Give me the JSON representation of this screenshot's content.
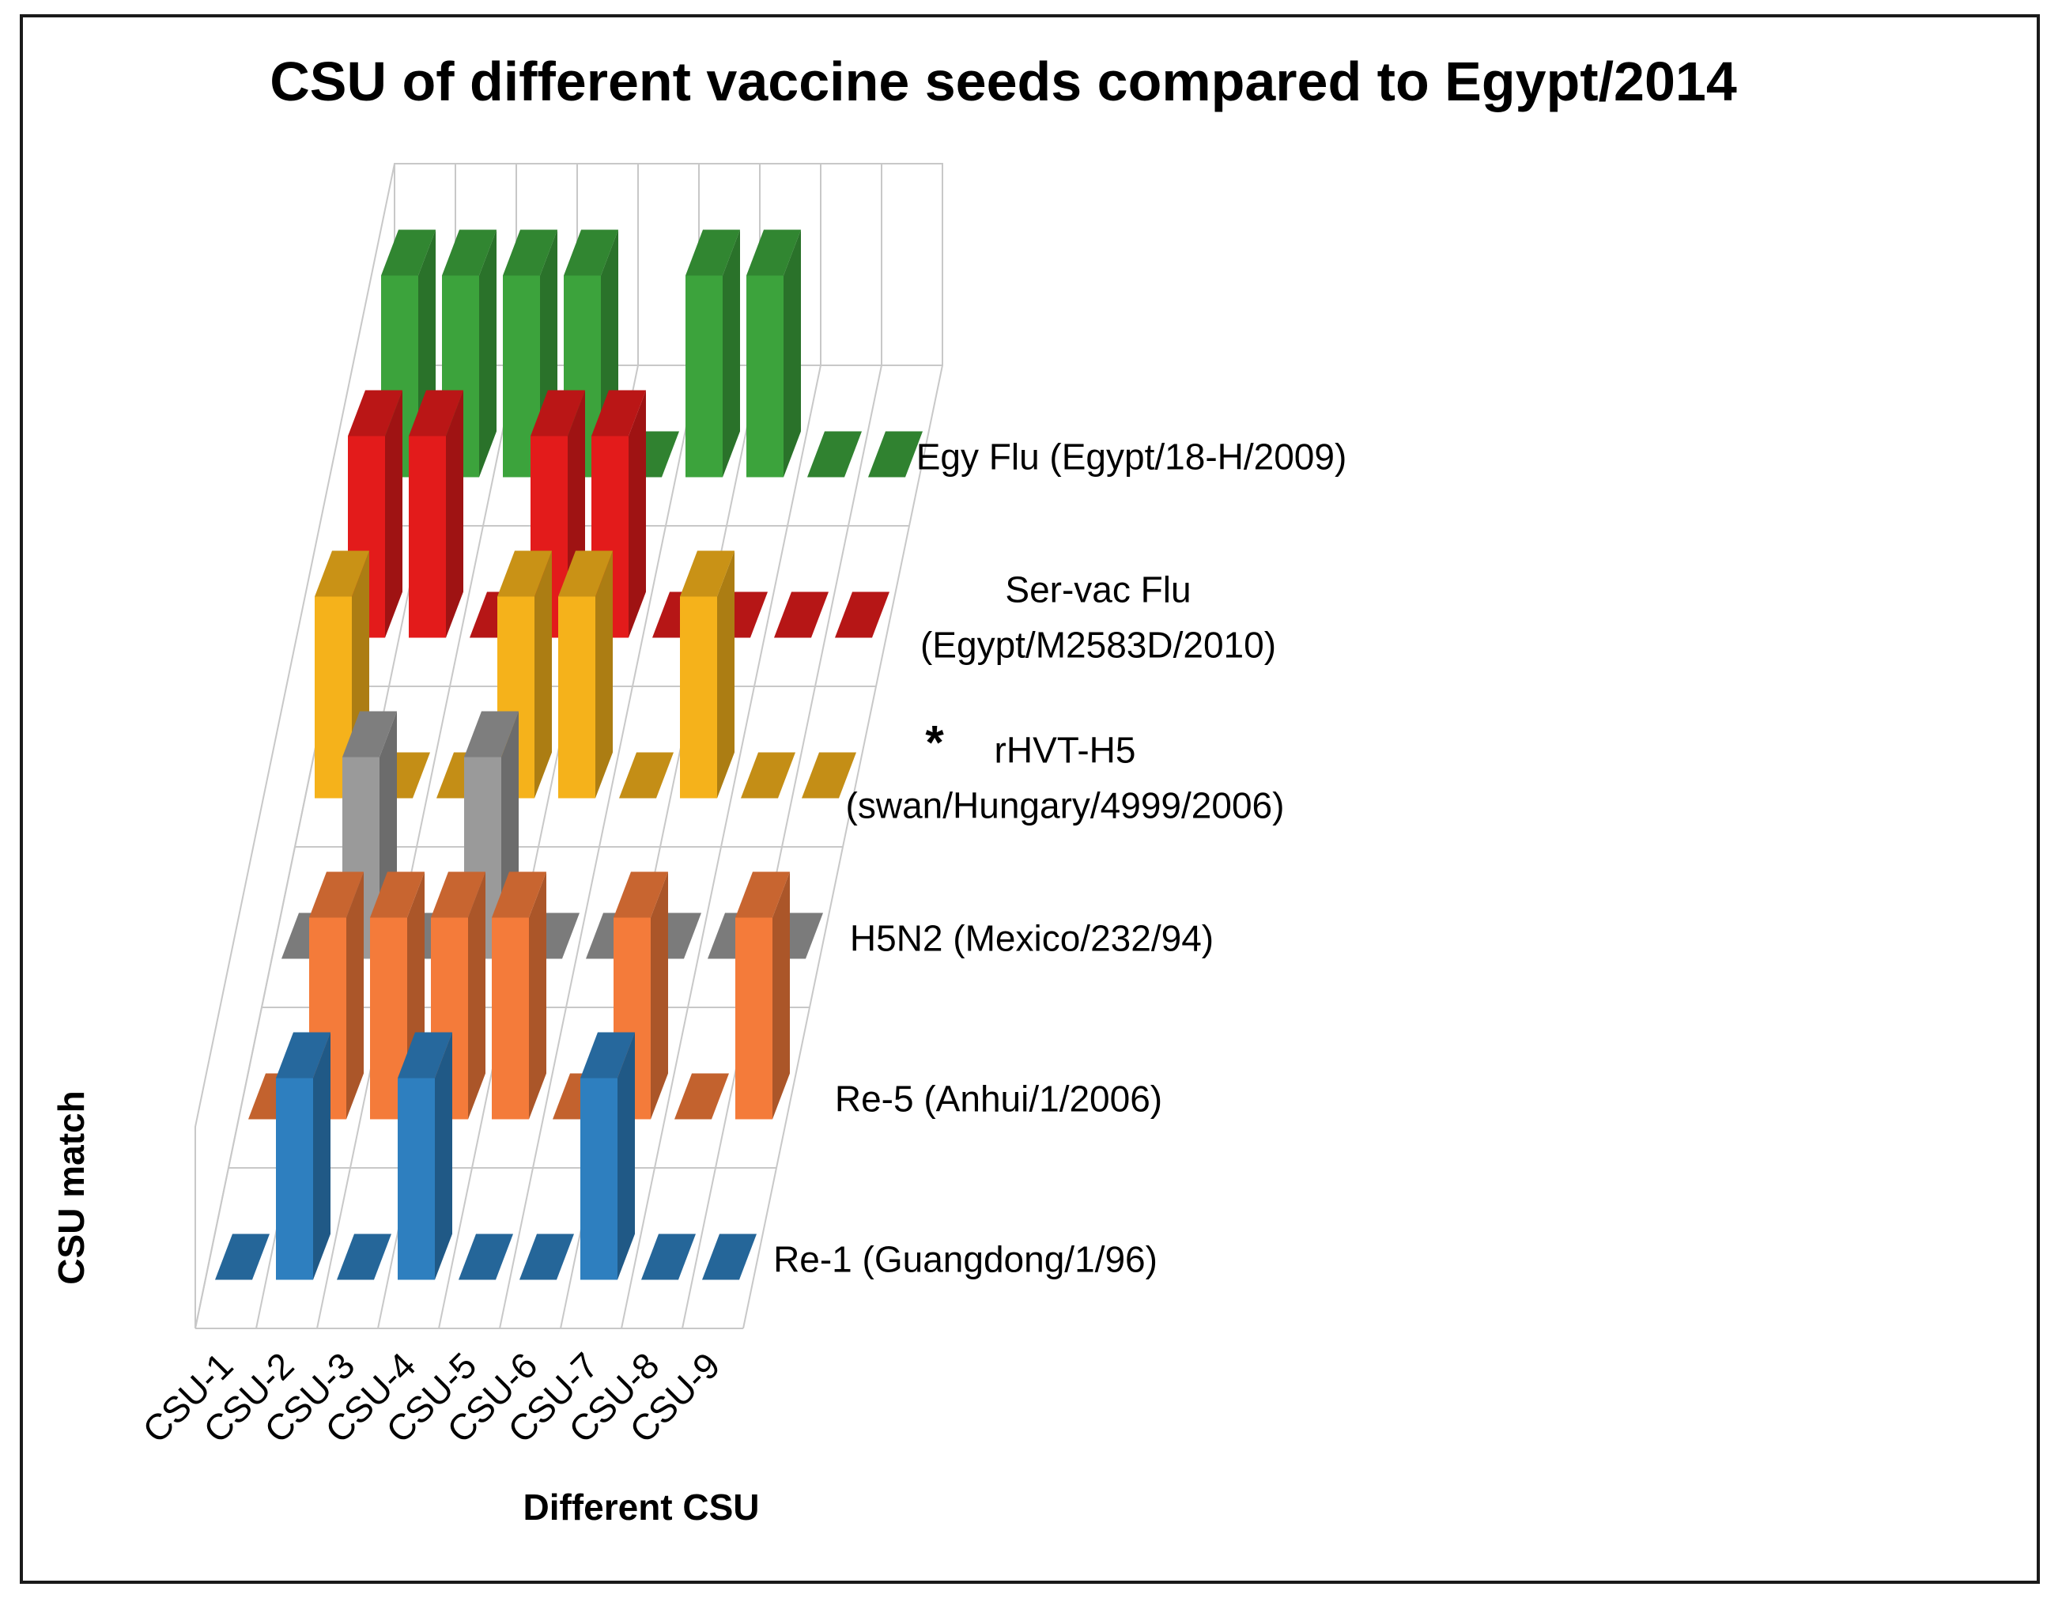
{
  "chart_data": {
    "type": "bar3d",
    "title": "CSU of different vaccine seeds compared to Egypt/2014",
    "xlabel": "Different CSU",
    "ylabel": "CSU match",
    "categories": [
      "CSU-1",
      "CSU-2",
      "CSU-3",
      "CSU-4",
      "CSU-5",
      "CSU-6",
      "CSU-7",
      "CSU-8",
      "CSU-9"
    ],
    "ylim": [
      0,
      1
    ],
    "legend": "series labels at right of each row",
    "series": [
      {
        "name": "Re-1 (Guangdong/1/96)",
        "label_lines": [
          "Re-1 (Guangdong/1/96)"
        ],
        "color": "#2e7fbf",
        "values": [
          0,
          1,
          0,
          1,
          0,
          0,
          1,
          0,
          0
        ]
      },
      {
        "name": "Re-5 (Anhui/1/2006)",
        "label_lines": [
          "Re-5 (Anhui/1/2006)"
        ],
        "color": "#f47b3a",
        "values": [
          0,
          1,
          1,
          1,
          1,
          0,
          1,
          0,
          1
        ]
      },
      {
        "name": "H5N2 (Mexico/232/94)",
        "label_lines": [
          "H5N2 (Mexico/232/94)"
        ],
        "color": "#9a9a9a",
        "values": [
          0,
          1,
          0,
          1,
          0,
          0,
          0,
          0,
          0
        ]
      },
      {
        "name": "rHVT-H5 (swan/Hungary/4999/2006)",
        "label_lines": [
          "rHVT-H5",
          "(swan/Hungary/4999/2006)"
        ],
        "asterisk": "*",
        "color": "#f5b21b",
        "values": [
          1,
          0,
          0,
          1,
          1,
          0,
          1,
          0,
          0
        ]
      },
      {
        "name": "Ser-vac Flu (Egypt/M2583D/2010)",
        "label_lines": [
          "Ser-vac Flu",
          "(Egypt/M2583D/2010)"
        ],
        "color": "#e31b1b",
        "values": [
          1,
          1,
          0,
          1,
          1,
          0,
          0,
          0,
          0
        ]
      },
      {
        "name": "Egy Flu (Egypt/18-H/2009)",
        "label_lines": [
          "Egy Flu (Egypt/18-H/2009)"
        ],
        "color": "#3ca33c",
        "values": [
          1,
          1,
          1,
          1,
          0,
          1,
          1,
          0,
          0
        ]
      }
    ]
  }
}
